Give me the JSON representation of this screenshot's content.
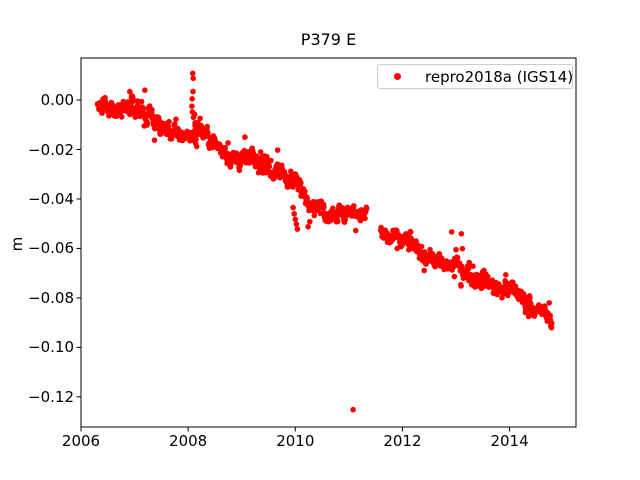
{
  "chart_data": {
    "type": "scatter",
    "title": "P379 E",
    "xlabel": "",
    "ylabel": "m",
    "grid": false,
    "xlim": [
      2006.0,
      2015.24
    ],
    "ylim": [
      -0.1322,
      0.017
    ],
    "xtick_values": [
      2006,
      2008,
      2010,
      2012,
      2014
    ],
    "xtick_labels": [
      "2006",
      "2008",
      "2010",
      "2012",
      "2014"
    ],
    "ytick_values": [
      0.0,
      -0.02,
      -0.04,
      -0.06,
      -0.08,
      -0.1,
      -0.12
    ],
    "ytick_labels": [
      "0.00",
      "−0.02",
      "−0.04",
      "−0.06",
      "−0.08",
      "−0.10",
      "−0.12"
    ],
    "legend": {
      "label": "repro2018a (IGS14)",
      "marker": "dot",
      "marker_color": "#ff0000",
      "location": "upper right"
    },
    "marker": {
      "color": "#ff0000",
      "radius_px": 2.8
    },
    "series": [
      {
        "name": "repro2018a (IGS14)",
        "color": "#ff0000",
        "trend_anchors": [
          [
            2006.31,
            -0.0015
          ],
          [
            2006.4,
            -0.002
          ],
          [
            2006.62,
            -0.0033
          ],
          [
            2006.8,
            -0.003
          ],
          [
            2006.95,
            -0.0025
          ],
          [
            2007.1,
            -0.004
          ],
          [
            2007.31,
            -0.008
          ],
          [
            2007.49,
            -0.0113
          ],
          [
            2007.68,
            -0.0127
          ],
          [
            2007.87,
            -0.0145
          ],
          [
            2008.05,
            -0.0133
          ],
          [
            2008.24,
            -0.0122
          ],
          [
            2008.43,
            -0.0161
          ],
          [
            2008.61,
            -0.0194
          ],
          [
            2008.8,
            -0.0228
          ],
          [
            2008.99,
            -0.0241
          ],
          [
            2009.17,
            -0.0237
          ],
          [
            2009.36,
            -0.0262
          ],
          [
            2009.55,
            -0.0282
          ],
          [
            2009.73,
            -0.0295
          ],
          [
            2009.92,
            -0.0315
          ],
          [
            2010.11,
            -0.0369
          ],
          [
            2010.29,
            -0.041
          ],
          [
            2010.48,
            -0.0437
          ],
          [
            2010.67,
            -0.0457
          ],
          [
            2010.85,
            -0.0464
          ],
          [
            2011.04,
            -0.0444
          ],
          [
            2011.2,
            -0.0455
          ],
          [
            2011.33,
            -0.047
          ],
          [
            2011.6,
            -0.0542
          ],
          [
            2011.82,
            -0.0565
          ],
          [
            2012.01,
            -0.0572
          ],
          [
            2012.19,
            -0.0585
          ],
          [
            2012.38,
            -0.0626
          ],
          [
            2012.57,
            -0.0639
          ],
          [
            2012.75,
            -0.0659
          ],
          [
            2012.94,
            -0.0666
          ],
          [
            2013.13,
            -0.0693
          ],
          [
            2013.31,
            -0.0713
          ],
          [
            2013.5,
            -0.072
          ],
          [
            2013.69,
            -0.0747
          ],
          [
            2013.87,
            -0.076
          ],
          [
            2014.06,
            -0.0754
          ],
          [
            2014.24,
            -0.0801
          ],
          [
            2014.43,
            -0.0834
          ],
          [
            2014.62,
            -0.0861
          ],
          [
            2014.79,
            -0.089
          ]
        ],
        "sampling": {
          "start": 2006.31,
          "end": 2014.79,
          "step": 0.006,
          "gap": [
            2011.335,
            2011.595
          ],
          "noise_std": 0.0017
        },
        "outliers": [
          [
            2006.91,
            0.0034
          ],
          [
            2007.19,
            0.004
          ],
          [
            2008.085,
            0.0108
          ],
          [
            2008.095,
            0.0088
          ],
          [
            2008.09,
            0.0034
          ],
          [
            2008.075,
            0.0005
          ],
          [
            2008.07,
            -0.0025
          ],
          [
            2008.08,
            -0.0048
          ],
          [
            2008.1,
            -0.007
          ],
          [
            2008.12,
            -0.0058
          ],
          [
            2008.13,
            -0.0092
          ],
          [
            2008.11,
            -0.015
          ],
          [
            2008.14,
            -0.0175
          ],
          [
            2008.16,
            -0.0188
          ],
          [
            2009.06,
            -0.015
          ],
          [
            2009.96,
            -0.0435
          ],
          [
            2009.98,
            -0.046
          ],
          [
            2010.0,
            -0.0482
          ],
          [
            2010.02,
            -0.0502
          ],
          [
            2010.04,
            -0.0522
          ],
          [
            2010.24,
            -0.0512
          ],
          [
            2011.08,
            -0.1252
          ],
          [
            2012.92,
            -0.0533
          ],
          [
            2013.1,
            -0.0541
          ],
          [
            2013.0,
            -0.0605
          ],
          [
            2013.12,
            -0.0601
          ]
        ]
      }
    ]
  }
}
